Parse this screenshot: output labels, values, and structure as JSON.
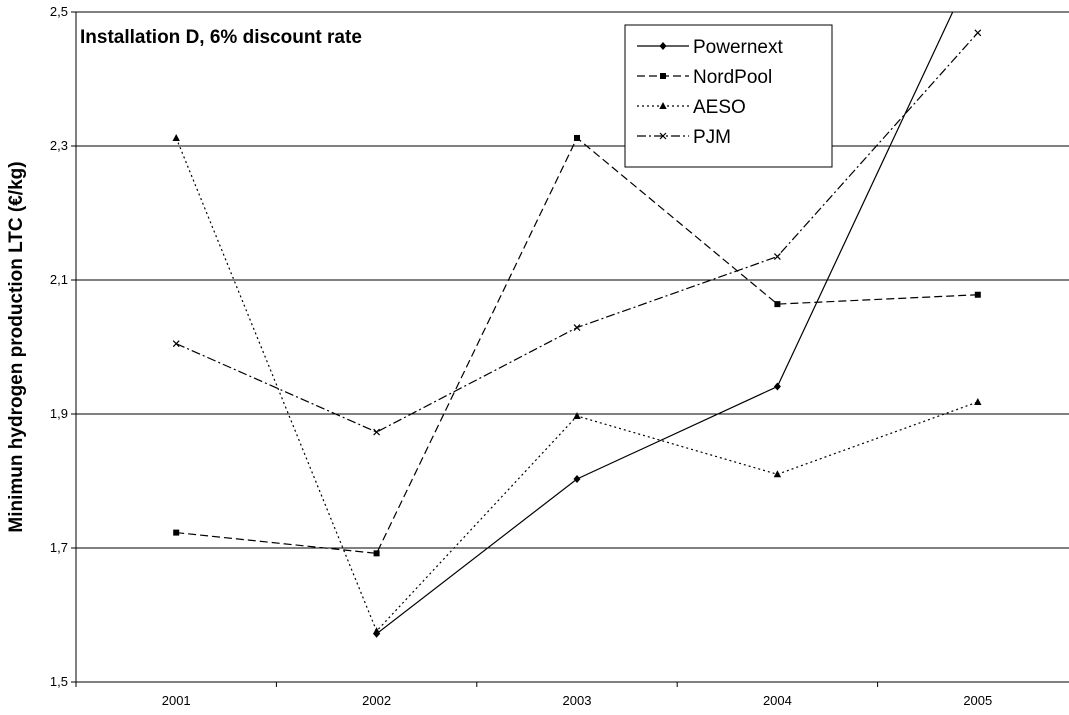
{
  "chart_data": {
    "type": "line",
    "title": "Installation D, 6% discount rate",
    "xlabel": "",
    "ylabel": "Minimun hydrogen production LTC (€/kg)",
    "categories": [
      "2001",
      "2002",
      "2003",
      "2004",
      "2005"
    ],
    "ylim": [
      1.5,
      2.5
    ],
    "yticks": [
      "1,5",
      "1,7",
      "1,9",
      "2,1",
      "2,3",
      "2,5"
    ],
    "grid": true,
    "legend_position": "top-right",
    "series": [
      {
        "name": "Powernext",
        "values": [
          null,
          1.572,
          1.803,
          1.941,
          2.58
        ],
        "color": "#000000",
        "dash": "solid",
        "marker": "diamond"
      },
      {
        "name": "NordPool",
        "values": [
          1.723,
          1.692,
          2.312,
          2.064,
          2.078
        ],
        "color": "#000000",
        "dash": "dashed",
        "marker": "square"
      },
      {
        "name": "AESO",
        "values": [
          2.312,
          1.576,
          1.897,
          1.81,
          1.918
        ],
        "color": "#000000",
        "dash": "dotted",
        "marker": "triangle"
      },
      {
        "name": "PJM",
        "values": [
          2.005,
          1.873,
          2.029,
          2.135,
          2.469
        ],
        "color": "#000000",
        "dash": "dashdot",
        "marker": "x"
      }
    ]
  }
}
